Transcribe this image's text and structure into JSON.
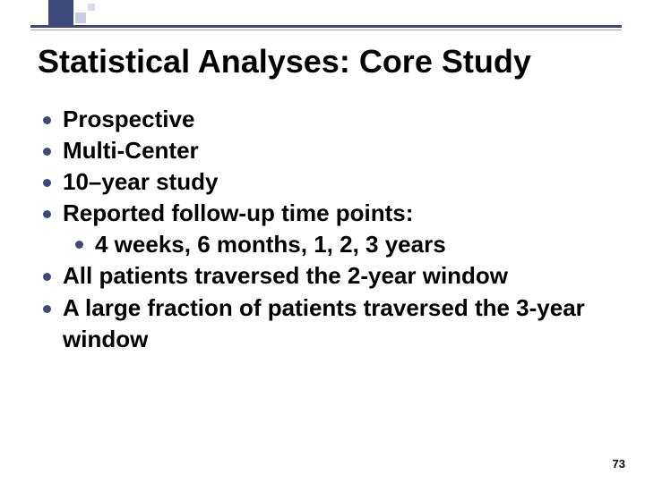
{
  "decor": {
    "big_square_color": "#3b4a7a",
    "small_a_color": "#c7cce0",
    "small_b_color": "#d8dbe8",
    "hr_thick_color": "#3b4a7a",
    "hr_thin_color": "#9aa2c2"
  },
  "title": "Statistical Analyses: Core Study",
  "title_fontsize": 36,
  "body_fontsize": 26,
  "text_color": "#000000",
  "bullet_color": "#3b4a7a",
  "bullets": [
    {
      "text": "Prospective"
    },
    {
      "text": "Multi-Center"
    },
    {
      "text": "10–year study"
    },
    {
      "text": "Reported follow-up time points:",
      "children": [
        {
          "text": "4 weeks, 6 months, 1, 2, 3 years"
        }
      ]
    },
    {
      "text": "All patients traversed the 2-year window"
    },
    {
      "text": "A large fraction of patients traversed the 3-year window"
    }
  ],
  "page_number": "73"
}
